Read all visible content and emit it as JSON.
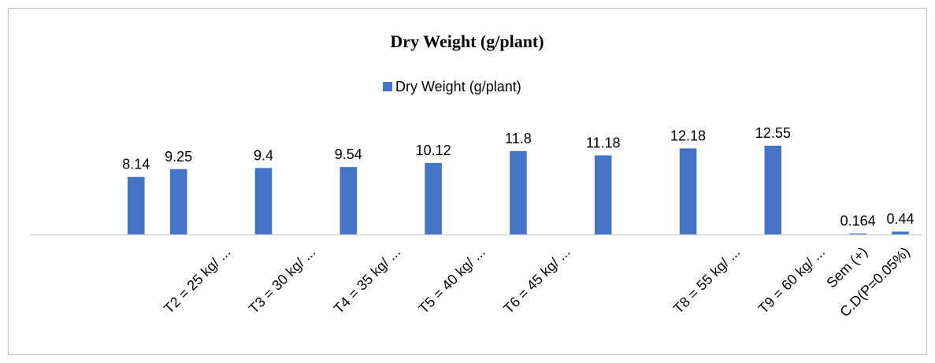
{
  "chart_data": {
    "type": "bar",
    "title": "Dry Weight (g/plant)",
    "categories": [
      null,
      null,
      null,
      null,
      "T2 = 25 kg/ ...",
      null,
      "T3 = 30 kg/ ...",
      null,
      "T4 = 35 kg/ ...",
      null,
      "T5 = 40 kg/ ...",
      null,
      "T6 = 45 kg/ ...",
      null,
      null,
      null,
      "T8 = 55 kg/ ...",
      null,
      "T9 = 60 kg/ ...",
      "Sem (+)",
      "C.D(P=0.05%)"
    ],
    "series": [
      {
        "name": "Dry Weight (g/plant)",
        "color": "#4472c4",
        "values": [
          null,
          null,
          8.14,
          9.25,
          null,
          9.4,
          null,
          9.54,
          null,
          10.12,
          null,
          11.8,
          null,
          11.18,
          null,
          12.18,
          null,
          12.55,
          null,
          0.164,
          0.44
        ]
      }
    ],
    "ylim": [
      0,
      14
    ],
    "legend": "top"
  }
}
